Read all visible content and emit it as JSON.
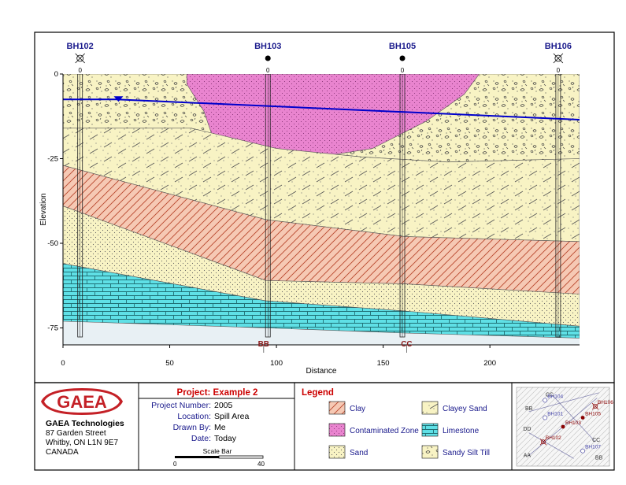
{
  "cross_section": {
    "x_axis": {
      "label": "Distance",
      "min": 0,
      "max": 242,
      "ticks": [
        0,
        50,
        100,
        150,
        200
      ]
    },
    "y_axis": {
      "label": "Elevation",
      "min": -80,
      "max": 0,
      "ticks": [
        0,
        -25,
        -50,
        -75
      ]
    },
    "boreholes": [
      {
        "id": "BH102",
        "x": 8,
        "symbol": "cross-circle",
        "top_label": "0"
      },
      {
        "id": "BH103",
        "x": 96,
        "symbol": "filled-dot",
        "top_label": "0"
      },
      {
        "id": "BH105",
        "x": 159,
        "symbol": "filled-dot",
        "top_label": "0"
      },
      {
        "id": "BH106",
        "x": 232,
        "symbol": "cross-circle",
        "top_label": "0"
      }
    ],
    "section_markers": [
      {
        "label": "BB",
        "x": 94
      },
      {
        "label": "CC",
        "x": 161
      }
    ],
    "water_table": [
      [
        0,
        -7.5
      ],
      [
        25,
        -7.5
      ],
      [
        242,
        -13.5
      ]
    ],
    "water_level_marker": {
      "x": 26,
      "elevation": -7.5
    },
    "layers": [
      {
        "unit": "Sandy Silt Till",
        "pattern": "till",
        "top": [
          [
            0,
            0
          ],
          [
            242,
            0
          ]
        ],
        "bottom": [
          [
            0,
            -16
          ],
          [
            60,
            -16
          ],
          [
            100,
            -22
          ],
          [
            140,
            -24.5
          ],
          [
            180,
            -26
          ],
          [
            242,
            -25
          ]
        ]
      },
      {
        "unit": "Contaminated Zone",
        "pattern": "contam",
        "top": [
          [
            58,
            0
          ],
          [
            195,
            0
          ]
        ],
        "bottom": [
          [
            58,
            -3
          ],
          [
            66,
            -11
          ],
          [
            72,
            -22
          ],
          [
            100,
            -25
          ],
          [
            125,
            -24
          ],
          [
            145,
            -22
          ],
          [
            170,
            -14
          ],
          [
            188,
            -6
          ],
          [
            195,
            0
          ]
        ]
      },
      {
        "unit": "Clayey Sand",
        "pattern": "clayey",
        "top": [
          [
            0,
            -16
          ],
          [
            60,
            -16
          ],
          [
            100,
            -22
          ],
          [
            140,
            -24.5
          ],
          [
            180,
            -26
          ],
          [
            242,
            -25
          ]
        ],
        "bottom": [
          [
            0,
            -27
          ],
          [
            95,
            -43
          ],
          [
            160,
            -48
          ],
          [
            242,
            -49.5
          ]
        ]
      },
      {
        "unit": "Clay",
        "pattern": "clay",
        "top": [
          [
            0,
            -27
          ],
          [
            95,
            -43
          ],
          [
            160,
            -48
          ],
          [
            242,
            -49.5
          ]
        ],
        "bottom": [
          [
            0,
            -39
          ],
          [
            95,
            -61
          ],
          [
            160,
            -62
          ],
          [
            242,
            -65
          ]
        ]
      },
      {
        "unit": "Sand",
        "pattern": "sand",
        "top": [
          [
            0,
            -39
          ],
          [
            95,
            -61
          ],
          [
            160,
            -62
          ],
          [
            242,
            -65
          ]
        ],
        "bottom": [
          [
            0,
            -56
          ],
          [
            95,
            -67
          ],
          [
            160,
            -70
          ],
          [
            242,
            -74.5
          ]
        ]
      },
      {
        "unit": "Limestone",
        "pattern": "limestone",
        "top": [
          [
            0,
            -56
          ],
          [
            95,
            -67
          ],
          [
            160,
            -70
          ],
          [
            242,
            -74.5
          ]
        ],
        "bottom": [
          [
            0,
            -73
          ],
          [
            95,
            -75
          ],
          [
            160,
            -76.5
          ],
          [
            242,
            -78
          ]
        ]
      }
    ]
  },
  "company": {
    "name": "GAEA Technologies",
    "logo_text": "GAEA",
    "address_lines": [
      "87 Garden Street",
      "Whitby, ON  L1N 9E7",
      "CANADA"
    ]
  },
  "project": {
    "title": "Project: Example 2",
    "fields": [
      {
        "label": "Project Number:",
        "value": "2005"
      },
      {
        "label": "Location:",
        "value": "Spill Area"
      },
      {
        "label": "Drawn By:",
        "value": "Me"
      },
      {
        "label": "Date:",
        "value": "Today"
      }
    ],
    "scale_bar": {
      "label": "Scale Bar",
      "start": "0",
      "end": "40"
    }
  },
  "legend": {
    "title": "Legend",
    "items": [
      {
        "label": "Clay",
        "pattern": "clay"
      },
      {
        "label": "Clayey Sand",
        "pattern": "clayey"
      },
      {
        "label": "Contaminated Zone",
        "pattern": "contam"
      },
      {
        "label": "Limestone",
        "pattern": "limestone"
      },
      {
        "label": "Sand",
        "pattern": "sand"
      },
      {
        "label": "Sandy Silt Till",
        "pattern": "till"
      }
    ]
  },
  "site_map": {
    "boreholes": [
      {
        "id": "BH104",
        "e": 0.3,
        "n": 0.85,
        "type": "open"
      },
      {
        "id": "BH106",
        "e": 0.86,
        "n": 0.77,
        "type": "cross"
      },
      {
        "id": "BH101",
        "e": 0.3,
        "n": 0.62,
        "type": "open"
      },
      {
        "id": "BH105",
        "e": 0.72,
        "n": 0.62,
        "type": "dot"
      },
      {
        "id": "BH103",
        "e": 0.5,
        "n": 0.5,
        "type": "dot"
      },
      {
        "id": "BH102",
        "e": 0.28,
        "n": 0.3,
        "type": "cross"
      },
      {
        "id": "BH107",
        "e": 0.72,
        "n": 0.18,
        "type": "open"
      }
    ],
    "section_lines": [
      {
        "from": "AA",
        "to": "BB",
        "a": [
          0.12,
          0.12
        ],
        "b": [
          0.88,
          0.88
        ]
      },
      {
        "from": "CC",
        "to": "CC",
        "a": [
          0.38,
          0.92
        ],
        "b": [
          0.86,
          0.3
        ]
      },
      {
        "from": "BB",
        "to": "BB",
        "a": [
          0.12,
          0.7
        ],
        "b": [
          0.9,
          0.95
        ]
      },
      {
        "from": "DD",
        "to": "DD",
        "a": [
          0.12,
          0.42
        ],
        "b": [
          0.62,
          0.08
        ]
      }
    ],
    "section_labels": [
      {
        "label": "CC",
        "e": 0.35,
        "n": 0.9
      },
      {
        "label": "BB",
        "e": 0.12,
        "n": 0.72
      },
      {
        "label": "DD",
        "e": 0.1,
        "n": 0.45
      },
      {
        "label": "AA",
        "e": 0.1,
        "n": 0.1
      },
      {
        "label": "CC",
        "e": 0.87,
        "n": 0.3
      },
      {
        "label": "BB",
        "e": 0.9,
        "n": 0.07
      }
    ]
  },
  "colors": {
    "borehole_label": "#1a1a8c",
    "section_marker": "#8b1a1a",
    "water_table": "#0000cc",
    "project_title": "#cc0000",
    "project_field_label": "#1a1a8c",
    "legend_title": "#cc0000",
    "legend_label": "#1a1a8c",
    "logo_red": "#c42026",
    "clay_fill": "#f6c9b4",
    "clayey_fill": "#f8f3c4",
    "contam_fill": "#e984cf",
    "limestone_fill": "#5fe0e6",
    "sand_fill": "#f8f3c4",
    "till_fill": "#f8f3c4"
  }
}
